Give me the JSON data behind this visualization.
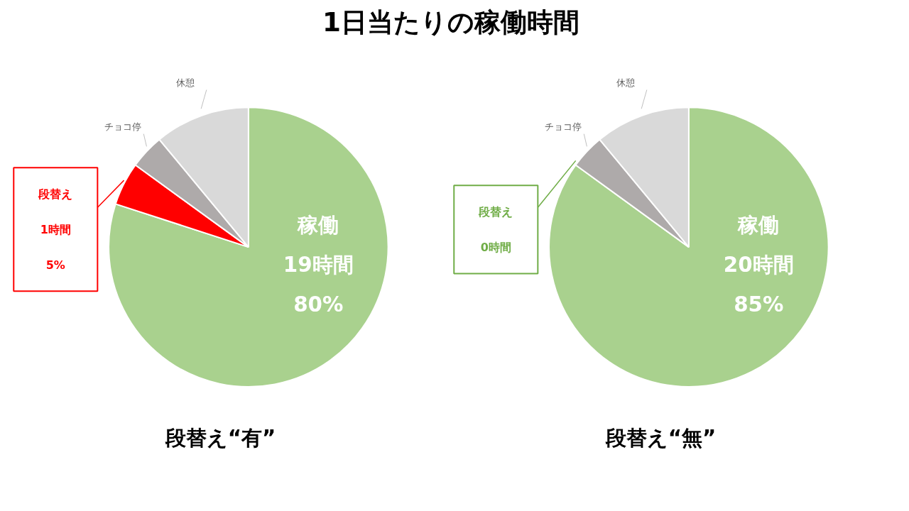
{
  "chart_data": [
    {
      "type": "pie",
      "title": "1日当たりの稼働時間",
      "xlabel": "段替え“有”",
      "categories": [
        "稼働",
        "段替え",
        "チョコ停",
        "休憩"
      ],
      "values": [
        80,
        5,
        4,
        11
      ],
      "colors": [
        "#a9d18e",
        "#ff0000",
        "#aeaaaa",
        "#d9d9d9"
      ],
      "value_labels": [
        "19時間\n80%",
        "1時間\n5%",
        null,
        null
      ]
    },
    {
      "type": "pie",
      "xlabel": "段替え“無”",
      "categories": [
        "稼働",
        "段替え",
        "チョコ停",
        "休憩"
      ],
      "values": [
        85,
        0,
        4,
        11
      ],
      "colors": [
        "#a9d18e",
        "#70ad47",
        "#aeaaaa",
        "#d9d9d9"
      ],
      "value_labels": [
        "20時間\n85%",
        "0時間",
        null,
        null
      ]
    }
  ]
}
